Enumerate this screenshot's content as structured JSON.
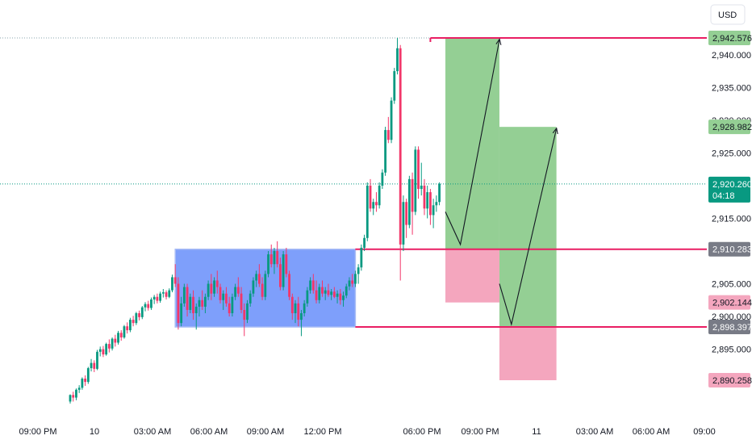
{
  "currency": "USD",
  "colors": {
    "up": "#089981",
    "down": "#f23669",
    "level": "#e91e63",
    "range_box": "#7e9ffb",
    "target_zone": "#94cf94",
    "stop_zone": "#f4a6be",
    "current_price": "#089981",
    "neutral_tag": "#787b86",
    "grid_dotted": "#89a6ad"
  },
  "chart_data": {
    "type": "candlestick",
    "y_range": [
      2887,
      2945
    ],
    "price_ticks": [
      "2,940.000",
      "2,935.000",
      "2,930.000",
      "2,925.000",
      "2,915.000",
      "2,905.000",
      "2,900.000",
      "2,895.000"
    ],
    "time_ticks": [
      "09:00 PM",
      "10",
      "03:00 AM",
      "06:00 AM",
      "09:00 AM",
      "12:00 PM",
      "06:00 PM",
      "09:00 PM",
      "11",
      "03:00 AM",
      "06:00 AM",
      "09:00"
    ],
    "price_tags": [
      {
        "label": "2,942.576",
        "value": 2942.576,
        "style": "up"
      },
      {
        "label": "2,928.982",
        "value": 2928.982,
        "style": "up"
      },
      {
        "label": "2,920.260",
        "value": 2920.26,
        "style": "current",
        "countdown": "04:18"
      },
      {
        "label": "2,910.283",
        "value": 2910.283,
        "style": "neutral"
      },
      {
        "label": "2,902.144",
        "value": 2902.144,
        "style": "stop"
      },
      {
        "label": "2,898.397",
        "value": 2898.397,
        "style": "neutral"
      },
      {
        "label": "2,890.258",
        "value": 2890.258,
        "style": "stop"
      }
    ],
    "levels": [
      {
        "name": "high-level",
        "value": 2942.576
      },
      {
        "name": "range-top-level",
        "value": 2910.283
      },
      {
        "name": "range-bottom-level",
        "value": 2898.397
      }
    ],
    "range_box": {
      "from_candle": 35,
      "to_candle": 95,
      "top": 2910.283,
      "bottom": 2898.397
    },
    "trade_setups": [
      {
        "from_candle": 125,
        "to_candle": 143,
        "entry": 2910.283,
        "target": 2942.576,
        "stop": 2902.144,
        "path": [
          [
            125,
            2916
          ],
          [
            130,
            2911
          ],
          [
            143,
            2942.3
          ]
        ]
      },
      {
        "from_candle": 143,
        "to_candle": 162,
        "entry": 2898.397,
        "target": 2928.982,
        "stop": 2890.258,
        "path": [
          [
            143,
            2905
          ],
          [
            147,
            2898.8
          ],
          [
            162,
            2928.7
          ]
        ]
      }
    ],
    "candles": [
      [
        2887.0,
        2888.1,
        2886.7,
        2888.0
      ],
      [
        2888.0,
        2888.5,
        2887.0,
        2887.6
      ],
      [
        2887.6,
        2889.0,
        2887.2,
        2888.8
      ],
      [
        2888.8,
        2889.5,
        2888.3,
        2889.1
      ],
      [
        2889.1,
        2890.7,
        2888.8,
        2890.5
      ],
      [
        2890.5,
        2891.0,
        2889.4,
        2890.0
      ],
      [
        2890.0,
        2892.3,
        2889.7,
        2892.1
      ],
      [
        2892.1,
        2893.5,
        2891.6,
        2892.9
      ],
      [
        2892.9,
        2893.3,
        2891.5,
        2892.0
      ],
      [
        2892.0,
        2894.9,
        2891.8,
        2894.6
      ],
      [
        2894.6,
        2895.4,
        2893.9,
        2895.0
      ],
      [
        2895.0,
        2895.5,
        2893.8,
        2894.2
      ],
      [
        2894.2,
        2896.0,
        2894.0,
        2895.8
      ],
      [
        2895.8,
        2896.5,
        2894.5,
        2895.1
      ],
      [
        2895.1,
        2896.8,
        2894.8,
        2896.6
      ],
      [
        2896.6,
        2897.2,
        2895.4,
        2896.0
      ],
      [
        2896.0,
        2897.8,
        2895.7,
        2897.5
      ],
      [
        2897.5,
        2897.9,
        2896.3,
        2896.8
      ],
      [
        2896.8,
        2898.7,
        2896.6,
        2898.5
      ],
      [
        2898.5,
        2899.1,
        2897.4,
        2897.9
      ],
      [
        2897.9,
        2899.8,
        2897.6,
        2899.5
      ],
      [
        2899.5,
        2900.1,
        2898.5,
        2899.0
      ],
      [
        2899.0,
        2900.7,
        2898.7,
        2900.5
      ],
      [
        2900.5,
        2900.9,
        2899.4,
        2899.9
      ],
      [
        2899.9,
        2901.6,
        2899.6,
        2901.4
      ],
      [
        2901.4,
        2902.2,
        2900.8,
        2901.9
      ],
      [
        2901.9,
        2902.4,
        2900.9,
        2901.3
      ],
      [
        2901.3,
        2902.9,
        2901.0,
        2902.6
      ],
      [
        2902.6,
        2903.3,
        2901.9,
        2903.0
      ],
      [
        2903.0,
        2903.5,
        2902.0,
        2902.4
      ],
      [
        2902.4,
        2903.8,
        2902.1,
        2903.5
      ],
      [
        2903.5,
        2904.2,
        2902.9,
        2903.7
      ],
      [
        2903.7,
        2904.0,
        2902.6,
        2903.0
      ],
      [
        2903.0,
        2904.3,
        2902.8,
        2904.0
      ],
      [
        2904.0,
        2906.4,
        2903.7,
        2906.0
      ],
      [
        2906.0,
        2908.0,
        2904.5,
        2905.0
      ],
      [
        2905.0,
        2906.0,
        2898.0,
        2899.0
      ],
      [
        2899.0,
        2903.0,
        2898.5,
        2902.0
      ],
      [
        2902.0,
        2905.0,
        2901.5,
        2904.5
      ],
      [
        2904.5,
        2905.0,
        2900.0,
        2901.0
      ],
      [
        2901.0,
        2903.5,
        2900.5,
        2903.0
      ],
      [
        2903.0,
        2904.0,
        2899.5,
        2900.5
      ],
      [
        2900.5,
        2902.0,
        2898.0,
        2901.5
      ],
      [
        2901.5,
        2903.0,
        2900.0,
        2902.5
      ],
      [
        2902.5,
        2904.0,
        2901.0,
        2901.5
      ],
      [
        2901.5,
        2903.5,
        2900.5,
        2903.0
      ],
      [
        2903.0,
        2905.5,
        2902.5,
        2905.0
      ],
      [
        2905.0,
        2906.5,
        2902.5,
        2903.5
      ],
      [
        2903.5,
        2906.0,
        2903.0,
        2905.5
      ],
      [
        2905.5,
        2907.0,
        2903.5,
        2904.5
      ],
      [
        2904.5,
        2905.0,
        2902.0,
        2902.5
      ],
      [
        2902.5,
        2904.0,
        2901.0,
        2903.5
      ],
      [
        2903.5,
        2904.5,
        2901.5,
        2902.0
      ],
      [
        2902.0,
        2903.0,
        2900.0,
        2900.5
      ],
      [
        2900.5,
        2903.5,
        2900.0,
        2903.0
      ],
      [
        2903.0,
        2905.0,
        2902.5,
        2904.5
      ],
      [
        2904.5,
        2906.0,
        2903.0,
        2903.5
      ],
      [
        2903.5,
        2904.5,
        2900.5,
        2901.0
      ],
      [
        2901.0,
        2902.0,
        2897.0,
        2899.5
      ],
      [
        2899.5,
        2902.5,
        2899.0,
        2902.0
      ],
      [
        2902.0,
        2904.0,
        2901.5,
        2903.5
      ],
      [
        2903.5,
        2906.0,
        2903.0,
        2905.5
      ],
      [
        2905.5,
        2907.0,
        2904.5,
        2906.5
      ],
      [
        2906.5,
        2908.0,
        2904.5,
        2905.0
      ],
      [
        2905.0,
        2906.0,
        2902.5,
        2903.0
      ],
      [
        2903.0,
        2907.0,
        2902.5,
        2906.5
      ],
      [
        2906.5,
        2910.0,
        2906.0,
        2909.5
      ],
      [
        2909.5,
        2911.0,
        2907.5,
        2908.0
      ],
      [
        2908.0,
        2910.5,
        2906.5,
        2910.0
      ],
      [
        2910.0,
        2911.5,
        2907.5,
        2908.0
      ],
      [
        2908.0,
        2909.0,
        2904.0,
        2904.5
      ],
      [
        2904.5,
        2910.0,
        2904.0,
        2909.5
      ],
      [
        2909.5,
        2910.5,
        2906.0,
        2906.5
      ],
      [
        2906.5,
        2907.0,
        2902.5,
        2903.0
      ],
      [
        2903.0,
        2903.5,
        2899.5,
        2900.5
      ],
      [
        2900.5,
        2902.5,
        2899.0,
        2902.0
      ],
      [
        2902.0,
        2903.0,
        2898.5,
        2899.5
      ],
      [
        2899.5,
        2901.0,
        2897.0,
        2900.5
      ],
      [
        2900.5,
        2902.5,
        2900.0,
        2902.0
      ],
      [
        2902.0,
        2904.5,
        2901.5,
        2904.0
      ],
      [
        2904.0,
        2906.0,
        2903.5,
        2905.5
      ],
      [
        2905.5,
        2906.5,
        2903.5,
        2904.0
      ],
      [
        2904.0,
        2905.5,
        2902.0,
        2902.5
      ],
      [
        2902.5,
        2905.0,
        2902.0,
        2904.5
      ],
      [
        2904.5,
        2905.5,
        2903.0,
        2903.5
      ],
      [
        2903.5,
        2904.5,
        2902.5,
        2904.0
      ],
      [
        2904.0,
        2905.0,
        2903.0,
        2903.3
      ],
      [
        2903.3,
        2904.2,
        2902.5,
        2903.8
      ],
      [
        2903.8,
        2904.5,
        2902.8,
        2903.0
      ],
      [
        2903.0,
        2904.0,
        2902.0,
        2903.5
      ],
      [
        2903.5,
        2904.2,
        2901.8,
        2902.5
      ],
      [
        2902.5,
        2903.8,
        2901.5,
        2903.2
      ],
      [
        2903.2,
        2905.0,
        2902.8,
        2904.6
      ],
      [
        2904.6,
        2906.0,
        2904.0,
        2905.5
      ],
      [
        2905.5,
        2906.5,
        2904.5,
        2905.0
      ],
      [
        2905.0,
        2907.0,
        2904.5,
        2906.5
      ],
      [
        2906.5,
        2908.0,
        2905.0,
        2907.5
      ],
      [
        2907.5,
        2911.0,
        2907.0,
        2910.5
      ],
      [
        2910.5,
        2912.5,
        2910.0,
        2912.0
      ],
      [
        2912.0,
        2920.5,
        2911.5,
        2920.0
      ],
      [
        2920.0,
        2921.0,
        2916.0,
        2916.5
      ],
      [
        2916.5,
        2918.0,
        2915.5,
        2917.5
      ],
      [
        2917.5,
        2919.0,
        2916.0,
        2917.0
      ],
      [
        2917.0,
        2920.5,
        2916.5,
        2920.0
      ],
      [
        2920.0,
        2922.5,
        2919.5,
        2922.0
      ],
      [
        2922.0,
        2929.0,
        2921.5,
        2928.5
      ],
      [
        2928.5,
        2930.5,
        2926.5,
        2927.0
      ],
      [
        2927.0,
        2933.5,
        2926.5,
        2933.0
      ],
      [
        2933.0,
        2938.0,
        2932.5,
        2937.5
      ],
      [
        2937.5,
        2942.6,
        2937.0,
        2941.0
      ],
      [
        2941.0,
        2941.5,
        2905.5,
        2911.0
      ],
      [
        2911.0,
        2918.5,
        2910.0,
        2917.5
      ],
      [
        2917.5,
        2918.0,
        2912.0,
        2914.0
      ],
      [
        2914.0,
        2921.5,
        2913.5,
        2921.0
      ],
      [
        2921.0,
        2922.0,
        2912.5,
        2916.0
      ],
      [
        2916.0,
        2926.0,
        2915.5,
        2925.5
      ],
      [
        2925.5,
        2926.0,
        2918.0,
        2919.5
      ],
      [
        2919.5,
        2923.5,
        2918.5,
        2920.0
      ],
      [
        2920.0,
        2921.0,
        2915.5,
        2916.5
      ],
      [
        2916.5,
        2920.0,
        2915.0,
        2919.0
      ],
      [
        2919.0,
        2919.5,
        2914.0,
        2915.5
      ],
      [
        2915.5,
        2918.0,
        2913.5,
        2917.0
      ],
      [
        2917.0,
        2918.5,
        2916.0,
        2917.5
      ],
      [
        2917.5,
        2920.5,
        2917.0,
        2920.26
      ]
    ]
  }
}
